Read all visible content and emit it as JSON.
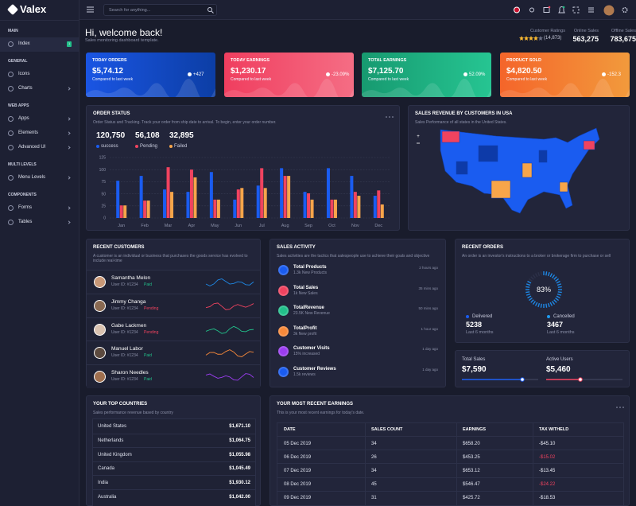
{
  "sidebar": {
    "logo": "Valex",
    "sections": [
      {
        "title": "MAIN",
        "items": [
          {
            "label": "Index",
            "badge": "1",
            "has_submenu": false
          }
        ]
      },
      {
        "title": "GENERAL",
        "items": [
          {
            "label": "Icons",
            "has_submenu": false
          },
          {
            "label": "Charts",
            "has_submenu": true
          }
        ]
      },
      {
        "title": "WEB APPS",
        "items": [
          {
            "label": "Apps",
            "has_submenu": true
          },
          {
            "label": "Elements",
            "has_submenu": true
          },
          {
            "label": "Advanced UI",
            "has_submenu": true
          }
        ]
      },
      {
        "title": "MULTI LEVELS",
        "items": [
          {
            "label": "Menu Levels",
            "has_submenu": true
          }
        ]
      },
      {
        "title": "COMPONENTS",
        "items": [
          {
            "label": "Forms",
            "has_submenu": true
          },
          {
            "label": "Tables",
            "has_submenu": true
          }
        ]
      }
    ]
  },
  "header": {
    "search_placeholder": "Search for anything..."
  },
  "welcome": {
    "title": "Hi, welcome back!",
    "subtitle": "Sales monitoring dashboard template."
  },
  "summary": [
    {
      "label": "Customer Ratings",
      "value": "(14,873)"
    },
    {
      "label": "Online Sales",
      "value": "563,275"
    },
    {
      "label": "Offline Sales",
      "value": "783,675"
    }
  ],
  "cards": [
    {
      "title": "TODAY ORDERS",
      "value": "$5,74.12",
      "note": "Compared to last week",
      "change": "+427"
    },
    {
      "title": "TODAY EARNINGS",
      "value": "$1,230.17",
      "note": "Compared to last week",
      "change": "-23.09%"
    },
    {
      "title": "TOTAL EARNINGS",
      "value": "$7,125.70",
      "note": "Compared to last week",
      "change": "52.09%"
    },
    {
      "title": "PRODUCT SOLD",
      "value": "$4,820.50",
      "note": "Compared to last week",
      "change": "-152.3"
    }
  ],
  "order_status": {
    "title": "ORDER STATUS",
    "description": "Order Status and Tracking. Track your order from ship date to arrival. To begin, enter your order number.",
    "stats": [
      {
        "value": "120,750",
        "label": "success"
      },
      {
        "value": "56,108",
        "label": "Pending"
      },
      {
        "value": "32,895",
        "label": "Failed"
      }
    ],
    "chart_data": {
      "type": "bar",
      "categories": [
        "Jan",
        "Feb",
        "Mar",
        "Apr",
        "May",
        "Jun",
        "Jul",
        "Aug",
        "Sep",
        "Oct",
        "Nov",
        "Dec"
      ],
      "series": [
        {
          "name": "success",
          "color": "#1a5cf0",
          "values": [
            77,
            87,
            59,
            54,
            95,
            38,
            67,
            103,
            54,
            103,
            87,
            46
          ]
        },
        {
          "name": "Pending",
          "color": "#f0435f",
          "values": [
            26,
            36,
            105,
            100,
            38,
            59,
            103,
            87,
            51,
            38,
            54,
            57
          ]
        },
        {
          "name": "Failed",
          "color": "#f7a54a",
          "values": [
            26,
            36,
            54,
            84,
            38,
            62,
            62,
            87,
            38,
            38,
            46,
            28
          ]
        }
      ],
      "ylim": [
        0,
        125
      ],
      "yticks": [
        0,
        25,
        50,
        75,
        100,
        125
      ],
      "grid": true
    }
  },
  "sales_revenue": {
    "title": "SALES REVENUE BY CUSTOMERS IN USA",
    "description": "Sales Performance of all states in the United States."
  },
  "recent_customers": {
    "title": "RECENT CUSTOMERS",
    "description": "A customer is an individual or business that purchases the goods service has evolved to include real-time",
    "rows": [
      {
        "name": "Samantha Melon",
        "user_id": "User ID: #1234",
        "status": "Paid",
        "status_color": "#22c08a"
      },
      {
        "name": "Jimmy Changa",
        "user_id": "User ID: #1234",
        "status": "Pending",
        "status_color": "#f0435f"
      },
      {
        "name": "Gabe Lackmen",
        "user_id": "User ID: #1234",
        "status": "Pending",
        "status_color": "#f0435f"
      },
      {
        "name": "Manuel Labor",
        "user_id": "User ID: #1234",
        "status": "Paid",
        "status_color": "#22c08a"
      },
      {
        "name": "Sharon Needles",
        "user_id": "User ID: #1234",
        "status": "Paid",
        "status_color": "#22c08a"
      }
    ]
  },
  "sales_activity": {
    "title": "SALES ACTIVITY",
    "description": "Sales activities are the tactics that salespeople use to achieve their goals and objective",
    "items": [
      {
        "title": "Total Products",
        "subtitle": "1.3k New Products",
        "time": "2 hours ago"
      },
      {
        "title": "Total Sales",
        "subtitle": "1k New Sales",
        "time": "35 mins ago"
      },
      {
        "title": "TotalRevenue",
        "subtitle": "23.5K New Revenue",
        "time": "50 mins ago"
      },
      {
        "title": "TotalProfit",
        "subtitle": "3k New profit",
        "time": "1 hour ago"
      },
      {
        "title": "Customer Visits",
        "subtitle": "15% increased",
        "time": "1 day ago"
      },
      {
        "title": "Customer Reviews",
        "subtitle": "1.5k reviews",
        "time": "1 day ago"
      }
    ]
  },
  "recent_orders": {
    "title": "RECENT ORDERS",
    "description": "An order is an investor's instructions to a broker or brokerage firm to purchase or sell",
    "gauge": {
      "value": 83,
      "label": "83%"
    },
    "stats": [
      {
        "label": "Delivered",
        "value": "5238",
        "note": "Last 6 months",
        "color": "#1a5cf0"
      },
      {
        "label": "Cancelled",
        "value": "3467",
        "note": "Last 6 months",
        "color": "#1e9bf0"
      }
    ]
  },
  "totals": [
    {
      "label": "Total Sales",
      "value": "$7,590"
    },
    {
      "label": "Active Users",
      "value": "$5,460"
    }
  ],
  "top_countries": {
    "title": "YOUR TOP COUNTRIES",
    "description": "Sales performance revenue based by country",
    "rows": [
      [
        "United States",
        "$1,671.10"
      ],
      [
        "Netherlands",
        "$1,064.75"
      ],
      [
        "United Kingdom",
        "$1,055.98"
      ],
      [
        "Canada",
        "$1,045.49"
      ],
      [
        "India",
        "$1,930.12"
      ],
      [
        "Australia",
        "$1,042.00"
      ]
    ]
  },
  "earnings": {
    "title": "YOUR MOST RECENT EARNINGS",
    "description": "This is your most recent earnings for today's date.",
    "columns": [
      "DATE",
      "SALES COUNT",
      "EARNINGS",
      "TAX WITHELD"
    ],
    "rows": [
      {
        "date": "05 Dec 2019",
        "sales_count": "34",
        "earnings": "$658.20",
        "tax": "-$45.10",
        "tax_color": "#e9ebf5"
      },
      {
        "date": "06 Dec 2019",
        "sales_count": "26",
        "earnings": "$453.25",
        "tax": "-$15.02",
        "tax_color": "#f0435f"
      },
      {
        "date": "07 Dec 2019",
        "sales_count": "34",
        "earnings": "$653.12",
        "tax": "-$13.45",
        "tax_color": "#e9ebf5"
      },
      {
        "date": "08 Dec 2019",
        "sales_count": "45",
        "earnings": "$546.47",
        "tax": "-$24.22",
        "tax_color": "#f0435f"
      },
      {
        "date": "09 Dec 2019",
        "sales_count": "31",
        "earnings": "$425.72",
        "tax": "-$18.53",
        "tax_color": "#e9ebf5"
      }
    ]
  }
}
